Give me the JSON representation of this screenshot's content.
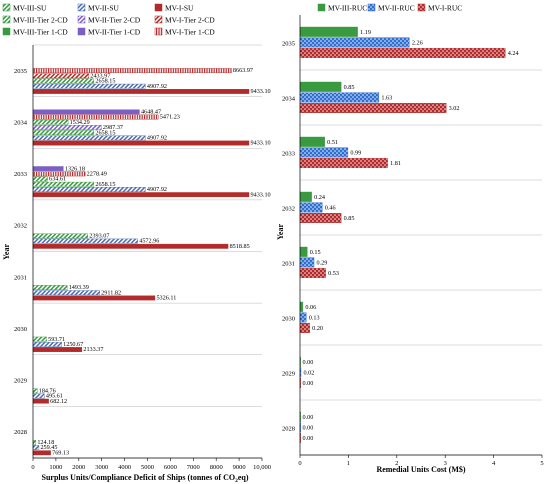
{
  "chart_data": [
    {
      "type": "bar",
      "orientation": "horizontal",
      "xlabel": "Surplus Units/Compliance Deficit of Ships (tonnes of CO2eq)",
      "xlabel_parts": {
        "main": "Surplus Units/Compliance Deficit of Ships (tonnes of CO",
        "sub": "2",
        "tail": "eq)"
      },
      "ylabel": "Year",
      "xlim": [
        0,
        10000
      ],
      "xticks": [
        "0",
        "1000",
        "2000",
        "3000",
        "4000",
        "5000",
        "6000",
        "7000",
        "8000",
        "9000",
        "10,000"
      ],
      "categories": [
        "2035",
        "2034",
        "2033",
        "2032",
        "2031",
        "2030",
        "2029",
        "2028"
      ],
      "legend_position": "top",
      "series": [
        {
          "name": "MV-III-Tier 1-CD",
          "style": "solid",
          "color": "#3a9a40",
          "values": [
            null,
            null,
            null,
            null,
            null,
            null,
            null,
            null
          ],
          "labels": [
            "",
            "",
            "",
            "",
            "",
            "",
            "",
            ""
          ]
        },
        {
          "name": "MV-II-Tier 1-CD",
          "style": "solid",
          "color": "#7b5fc6",
          "values": [
            null,
            4648.47,
            1326.18,
            null,
            null,
            null,
            null,
            null
          ],
          "labels": [
            "",
            "4648.47",
            "1326.18",
            "",
            "",
            "",
            "",
            ""
          ]
        },
        {
          "name": "MV-I-Tier 1-CD",
          "style": "vertical",
          "color": "#b42a2a",
          "values": [
            8663.97,
            5471.23,
            2278.49,
            null,
            null,
            null,
            null,
            null
          ],
          "labels": [
            "8663.97",
            "5471.23",
            "2278.49",
            "",
            "",
            "",
            "",
            ""
          ]
        },
        {
          "name": "MV-III-Tier 2-CD",
          "style": "diagonal",
          "color": "#3a9a40",
          "values": [
            null,
            1534.29,
            634.61,
            null,
            null,
            null,
            null,
            null
          ],
          "labels": [
            "",
            "1534.29",
            "634.61",
            "",
            "",
            "",
            "",
            ""
          ]
        },
        {
          "name": "MV-II-Tier 2-CD",
          "style": "diagonal",
          "color": "#7b5fc6",
          "values": [
            null,
            2987.37,
            null,
            null,
            null,
            null,
            null,
            null
          ],
          "labels": [
            "",
            "2987.37",
            "",
            "",
            "",
            "",
            "",
            ""
          ]
        },
        {
          "name": "MV-I-Tier 2-CD",
          "style": "diagonal",
          "color": "#b42a2a",
          "values": [
            2433.97,
            null,
            null,
            null,
            null,
            null,
            null,
            null
          ],
          "labels": [
            "2433.97",
            "",
            "",
            "",
            "",
            "",
            "",
            ""
          ]
        },
        {
          "name": "MV-III-SU",
          "style": "diagonal",
          "color": "#3a9a40",
          "values": [
            2658.15,
            2658.15,
            2658.15,
            2393.07,
            1493.39,
            593.71,
            184.76,
            124.18
          ],
          "labels": [
            "2658.15",
            "2658.15",
            "2658.15",
            "2393.07",
            "1493.39",
            "593.71",
            "184.76",
            "124.18"
          ]
        },
        {
          "name": "MV-II-SU",
          "style": "diagonal",
          "color": "#4a6fb0",
          "values": [
            4907.92,
            4907.92,
            4907.92,
            4572.96,
            2911.82,
            1250.67,
            495.61,
            259.45
          ],
          "labels": [
            "4907.92",
            "4907.92",
            "4907.92",
            "4572.96",
            "2911.82",
            "1250.67",
            "495.61",
            "259.45"
          ]
        },
        {
          "name": "MV-I-SU",
          "style": "solid",
          "color": "#b42a2a",
          "values": [
            9433.1,
            9433.1,
            9433.1,
            8518.85,
            5326.11,
            2133.37,
            682.12,
            769.13
          ],
          "labels": [
            "9433.10",
            "9433.10",
            "9433.10",
            "8518.85",
            "5326.11",
            "2133.37",
            "682.12",
            "769.13"
          ]
        }
      ],
      "legend": [
        {
          "name": "MV-III-SU",
          "style": "diagonal",
          "color": "#3a9a40"
        },
        {
          "name": "MV-II-SU",
          "style": "diagonal",
          "color": "#4a6fb0"
        },
        {
          "name": "MV-I-SU",
          "style": "solid",
          "color": "#b42a2a"
        },
        {
          "name": "MV-III-Tier 2-CD",
          "style": "diagonal",
          "color": "#3a9a40"
        },
        {
          "name": "MV-II-Tier 2-CD",
          "style": "diagonal",
          "color": "#7b5fc6"
        },
        {
          "name": "MV-I-Tier 2-CD",
          "style": "diagonal",
          "color": "#b42a2a"
        },
        {
          "name": "MV-III-Tier 1-CD",
          "style": "solid",
          "color": "#3a9a40"
        },
        {
          "name": "MV-II-Tier 1-CD",
          "style": "solid",
          "color": "#7b5fc6"
        },
        {
          "name": "MV-I-Tier 1-CD",
          "style": "vertical",
          "color": "#b42a2a"
        }
      ]
    },
    {
      "type": "bar",
      "orientation": "horizontal",
      "xlabel": "Remedial Units Cost (M$)",
      "ylabel": "Year",
      "xlim": [
        0,
        5
      ],
      "xticks": [
        "0",
        "1",
        "2",
        "3",
        "4",
        "5"
      ],
      "categories": [
        "2035",
        "2034",
        "2033",
        "2032",
        "2031",
        "2030",
        "2029",
        "2028"
      ],
      "legend_position": "top",
      "series": [
        {
          "name": "MV-III-RUC",
          "style": "solid",
          "color": "#3a9a40",
          "values": [
            1.19,
            0.85,
            0.51,
            0.24,
            0.15,
            0.06,
            0.0,
            0.0
          ],
          "labels": [
            "1.19",
            "0.85",
            "0.51",
            "0.24",
            "0.15",
            "0.06",
            "0.00",
            "0.00"
          ]
        },
        {
          "name": "MV-II-RUC",
          "style": "dots",
          "color": "#2f6fd0",
          "values": [
            2.26,
            1.63,
            0.99,
            0.46,
            0.29,
            0.13,
            0.02,
            0.0
          ],
          "labels": [
            "2.26",
            "1.63",
            "0.99",
            "0.46",
            "0.29",
            "0.13",
            "0.02",
            "0.00"
          ]
        },
        {
          "name": "MV-I-RUC",
          "style": "dots",
          "color": "#b42a2a",
          "values": [
            4.24,
            3.02,
            1.81,
            0.85,
            0.53,
            0.2,
            0.0,
            0.0
          ],
          "labels": [
            "4.24",
            "3.02",
            "1.81",
            "0.85",
            "0.53",
            "0.20",
            "0.00",
            "0.00"
          ]
        }
      ]
    }
  ]
}
